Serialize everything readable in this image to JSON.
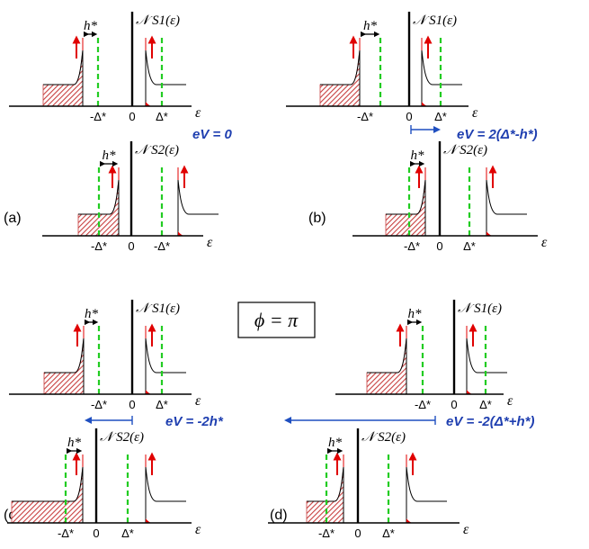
{
  "colors": {
    "axis": "#000000",
    "dashed_line": "#22cc22",
    "arrow": "#e00000",
    "hatch": "#c84040",
    "curve": "#000000",
    "bias_text": "#1f3fb0",
    "bias_arrow": "#1f4fc0"
  },
  "symbols": {
    "h_star": "h*",
    "minus_delta": "-Δ*",
    "delta": "Δ*",
    "zero": "0",
    "epsilon": "ε",
    "dos_s1": "𝒩 S1(ε)",
    "dos_s2": "𝒩 S2(ε)"
  },
  "phase_label": "ϕ = π",
  "panels": [
    {
      "id": "a",
      "label": "(a)",
      "bias_text": "eV = 0"
    },
    {
      "id": "b",
      "label": "(b)",
      "bias_text": "eV = 2(Δ*-h*)"
    },
    {
      "id": "c",
      "label": "(c)",
      "bias_text": "eV = -2h*"
    },
    {
      "id": "d",
      "label": "(d)",
      "bias_text": "eV = -2(Δ*+h*)"
    }
  ]
}
